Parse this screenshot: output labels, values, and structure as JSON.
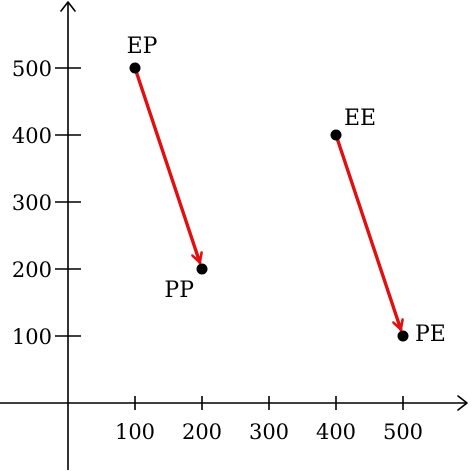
{
  "chart_data": {
    "type": "scatter",
    "title": "",
    "xlabel": "",
    "ylabel": "",
    "x_ticks": [
      100,
      200,
      300,
      400,
      500
    ],
    "y_ticks": [
      100,
      200,
      300,
      400,
      500
    ],
    "grid": false,
    "points": [
      {
        "label": "EP",
        "x": 100,
        "y": 500
      },
      {
        "label": "PP",
        "x": 200,
        "y": 200
      },
      {
        "label": "EE",
        "x": 400,
        "y": 400
      },
      {
        "label": "PE",
        "x": 500,
        "y": 100
      }
    ],
    "arrows": [
      {
        "from": "EP",
        "to": "PP"
      },
      {
        "from": "EE",
        "to": "PE"
      }
    ],
    "colors": {
      "axis": "#000000",
      "point": "#000000",
      "arrow": "#e01010"
    }
  }
}
